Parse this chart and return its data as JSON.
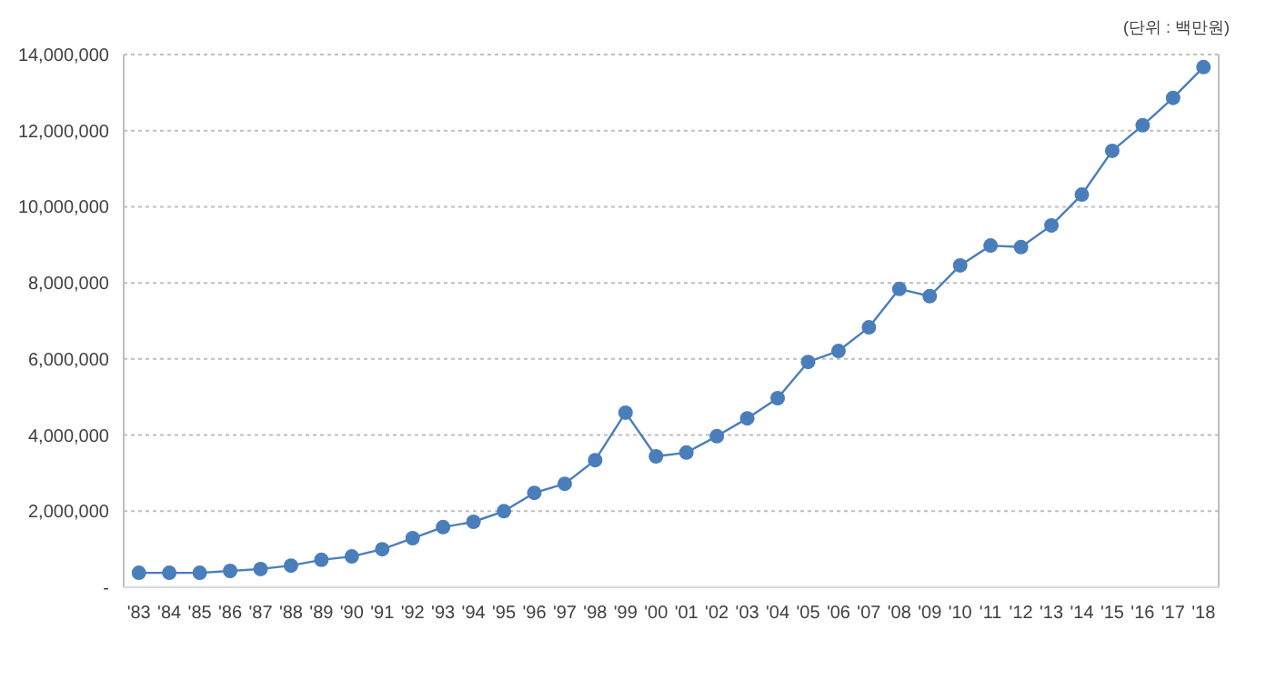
{
  "chart_data": {
    "type": "line",
    "categories": [
      "'83",
      "'84",
      "'85",
      "'86",
      "'87",
      "'88",
      "'89",
      "'90",
      "'91",
      "'92",
      "'93",
      "'94",
      "'95",
      "'96",
      "'97",
      "'98",
      "'99",
      "'00",
      "'01",
      "'02",
      "'03",
      "'04",
      "'05",
      "'06",
      "'07",
      "'08",
      "'09",
      "'10",
      "'11",
      "'12",
      "'13",
      "'14",
      "'15",
      "'16",
      "'17",
      "'18"
    ],
    "series": [
      {
        "color": "#4a7ebb",
        "values": [
          380000,
          380000,
          380000,
          430000,
          480000,
          570000,
          720000,
          810000,
          1000000,
          1290000,
          1580000,
          1720000,
          2000000,
          2480000,
          2720000,
          3340000,
          4590000,
          3440000,
          3540000,
          3970000,
          4440000,
          4970000,
          5920000,
          6210000,
          6830000,
          7840000,
          7650000,
          8460000,
          8980000,
          8940000,
          9510000,
          10320000,
          11470000,
          12140000,
          12860000,
          13670000
        ]
      }
    ],
    "ylim": [
      0,
      14000000
    ],
    "yticks": [
      {
        "value": 0,
        "label": "-"
      },
      {
        "value": 2000000,
        "label": "2,000,000"
      },
      {
        "value": 4000000,
        "label": "4,000,000"
      },
      {
        "value": 6000000,
        "label": "6,000,000"
      },
      {
        "value": 8000000,
        "label": "8,000,000"
      },
      {
        "value": 10000000,
        "label": "10,000,000"
      },
      {
        "value": 12000000,
        "label": "12,000,000"
      },
      {
        "value": 14000000,
        "label": "14,000,000"
      }
    ],
    "grid": "y",
    "marker": "circle",
    "line_style": "solid",
    "annotations": [
      "(단위 : 백만원)"
    ]
  }
}
